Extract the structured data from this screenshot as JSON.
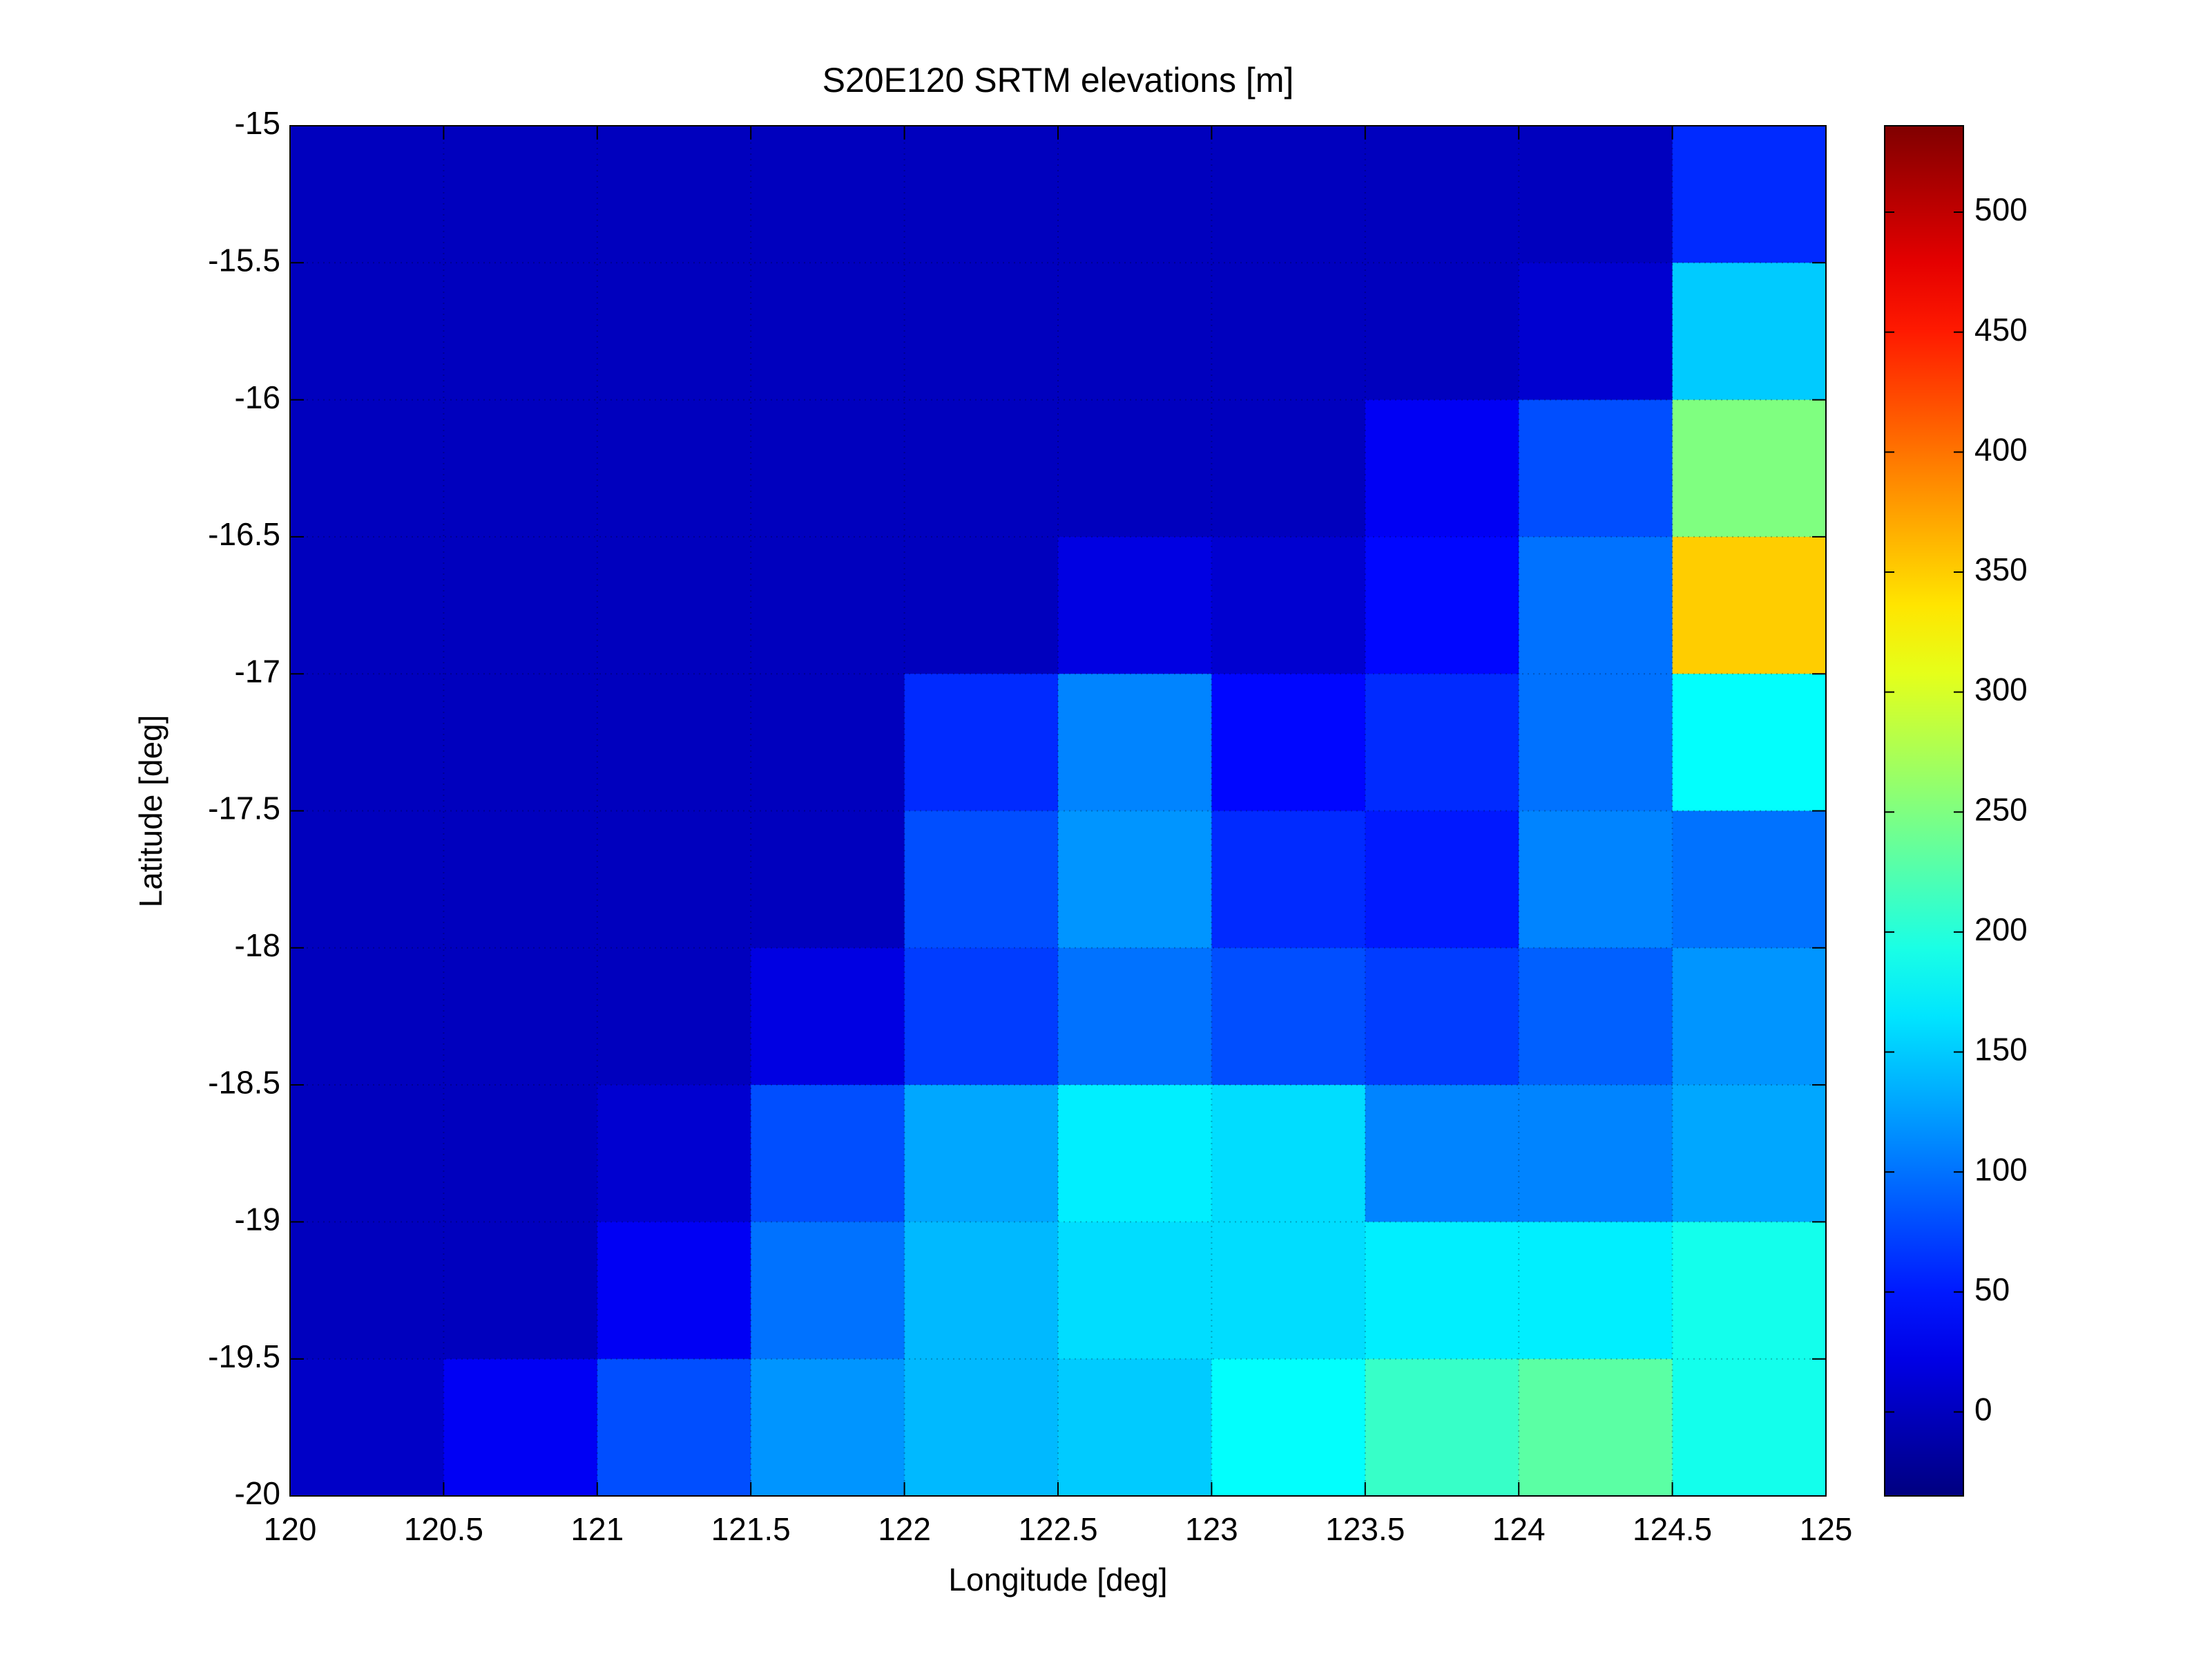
{
  "chart_data": {
    "type": "heatmap",
    "title": "S20E120 SRTM elevations [m]",
    "xlabel": "Longitude [deg]",
    "ylabel": "Latitude [deg]",
    "x": [
      120.25,
      120.75,
      121.25,
      121.75,
      122.25,
      122.75,
      123.25,
      123.75,
      124.25,
      124.75
    ],
    "y": [
      -15.25,
      -15.75,
      -16.25,
      -16.75,
      -17.25,
      -17.75,
      -18.25,
      -18.75,
      -19.25,
      -19.75
    ],
    "z": [
      [
        0,
        0,
        0,
        0,
        0,
        0,
        0,
        0,
        0,
        60
      ],
      [
        0,
        0,
        0,
        0,
        0,
        0,
        0,
        0,
        10,
        150
      ],
      [
        0,
        0,
        0,
        0,
        0,
        0,
        0,
        30,
        80,
        250
      ],
      [
        0,
        0,
        0,
        0,
        0,
        20,
        10,
        40,
        100,
        350
      ],
      [
        0,
        0,
        0,
        0,
        60,
        110,
        40,
        60,
        100,
        180
      ],
      [
        0,
        0,
        0,
        0,
        80,
        120,
        60,
        50,
        110,
        100
      ],
      [
        0,
        0,
        0,
        20,
        70,
        100,
        80,
        70,
        90,
        120
      ],
      [
        0,
        0,
        10,
        80,
        130,
        170,
        160,
        110,
        110,
        130
      ],
      [
        0,
        0,
        30,
        100,
        140,
        160,
        160,
        170,
        170,
        190
      ],
      [
        5,
        30,
        80,
        120,
        140,
        150,
        180,
        210,
        230,
        190
      ]
    ],
    "xlim": [
      120,
      125
    ],
    "xticks": [
      120,
      120.5,
      121,
      121.5,
      122,
      122.5,
      123,
      123.5,
      124,
      124.5,
      125
    ],
    "ylim": [
      -20,
      -15
    ],
    "yticks": [
      -20,
      -19.5,
      -19,
      -18.5,
      -18,
      -17.5,
      -17,
      -16.5,
      -16,
      -15.5,
      -15
    ],
    "clim": [
      -35,
      536
    ],
    "cticks": [
      0,
      50,
      100,
      150,
      200,
      250,
      300,
      350,
      400,
      450,
      500
    ],
    "colormap": "jet",
    "grid": true
  }
}
